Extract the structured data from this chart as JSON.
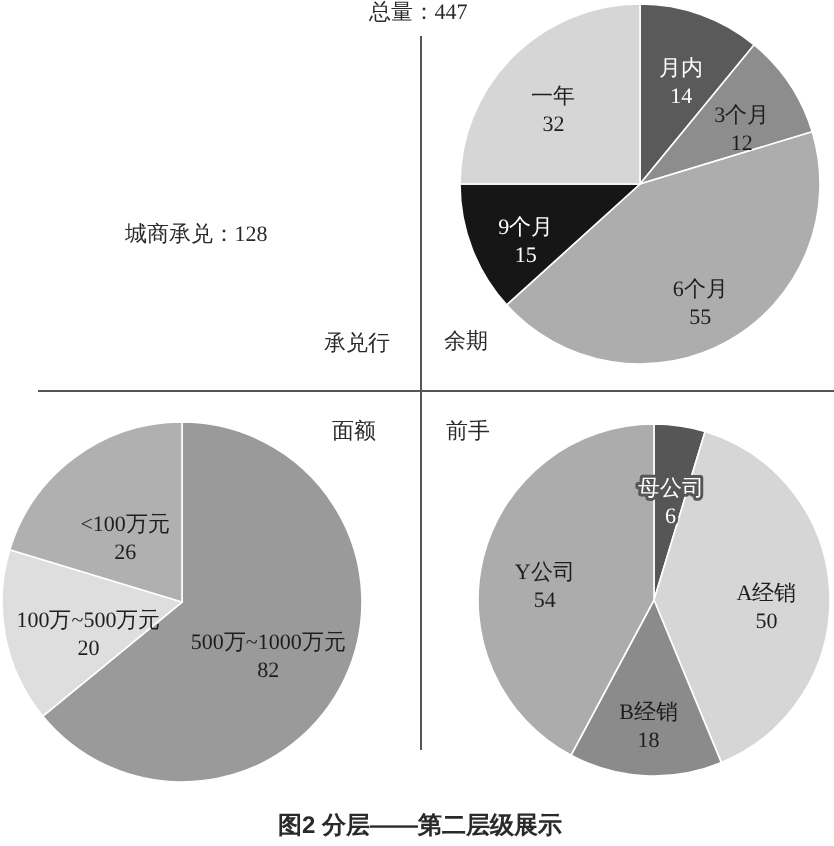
{
  "chart_data": [
    {
      "type": "other",
      "title": "承兑行",
      "annotations": [
        "总量：447",
        "城商承兑：128",
        "图2 分层——第二层级展示"
      ]
    },
    {
      "type": "pie",
      "title": "余期",
      "categories": [
        "月内",
        "3个月",
        "6个月",
        "9个月",
        "一年"
      ],
      "values": [
        14,
        12,
        55,
        15,
        32
      ],
      "colors": [
        "#5a5a5a",
        "#8d8d8d",
        "#adadad",
        "#161616",
        "#d6d6d6"
      ],
      "data_labels": true
    },
    {
      "type": "pie",
      "title": "面额",
      "categories": [
        "500万~1000万元",
        "100万~500万元",
        "<100万元"
      ],
      "values": [
        82,
        20,
        26
      ],
      "colors": [
        "#9a9a9a",
        "#dedede",
        "#b0b0b0"
      ],
      "data_labels": true
    },
    {
      "type": "pie",
      "title": "前手",
      "categories": [
        "母公司",
        "A经销",
        "B经销",
        "Y公司"
      ],
      "values": [
        6,
        50,
        18,
        54
      ],
      "colors": [
        "#565656",
        "#d6d6d6",
        "#8b8b8b",
        "#acacac"
      ],
      "data_labels": true
    }
  ]
}
